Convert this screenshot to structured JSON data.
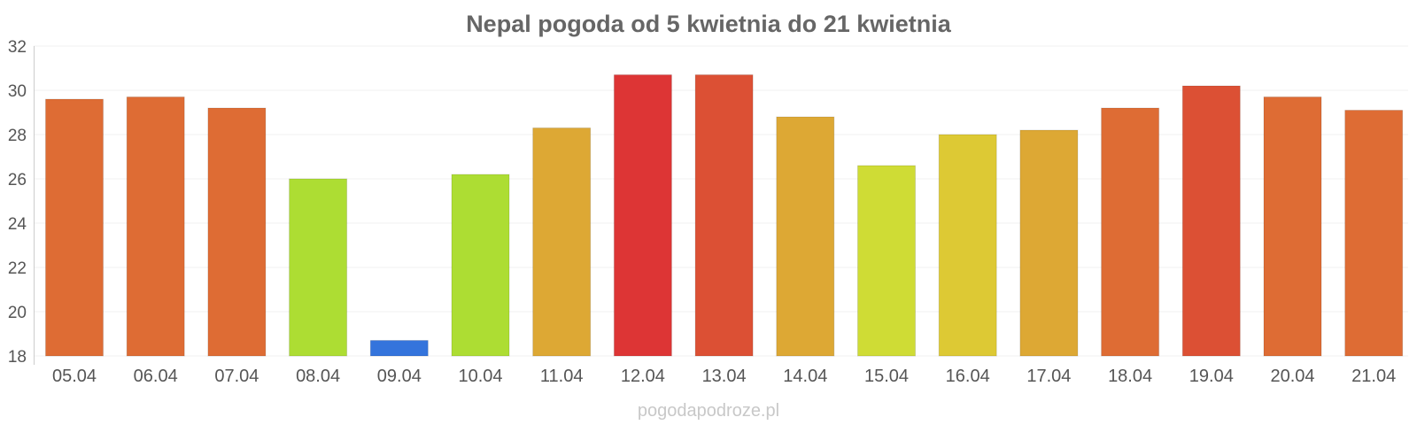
{
  "chart_data": {
    "type": "bar",
    "title": "Nepal pogoda od 5 kwietnia do 21 kwietnia",
    "xlabel": "",
    "ylabel": "",
    "ylim": [
      18,
      32
    ],
    "yticks": [
      18,
      20,
      22,
      24,
      26,
      28,
      30,
      32
    ],
    "grid": true,
    "categories": [
      "05.04",
      "06.04",
      "07.04",
      "08.04",
      "09.04",
      "10.04",
      "11.04",
      "12.04",
      "13.04",
      "14.04",
      "15.04",
      "16.04",
      "17.04",
      "18.04",
      "19.04",
      "20.04",
      "21.04"
    ],
    "values": [
      29.6,
      29.7,
      29.2,
      26.0,
      18.7,
      26.2,
      28.3,
      30.7,
      30.7,
      28.8,
      26.6,
      28.0,
      28.2,
      29.2,
      30.2,
      29.7,
      29.1
    ],
    "colors": [
      "#de6c34",
      "#de6c34",
      "#de6c34",
      "#addd33",
      "#3474dc",
      "#addd33",
      "#dda834",
      "#dd3535",
      "#dc5034",
      "#dda834",
      "#cfdc35",
      "#ddc934",
      "#dda834",
      "#de6c34",
      "#dc5034",
      "#de6c34",
      "#de6c34"
    ]
  },
  "watermark": "pogodapodroze.pl"
}
